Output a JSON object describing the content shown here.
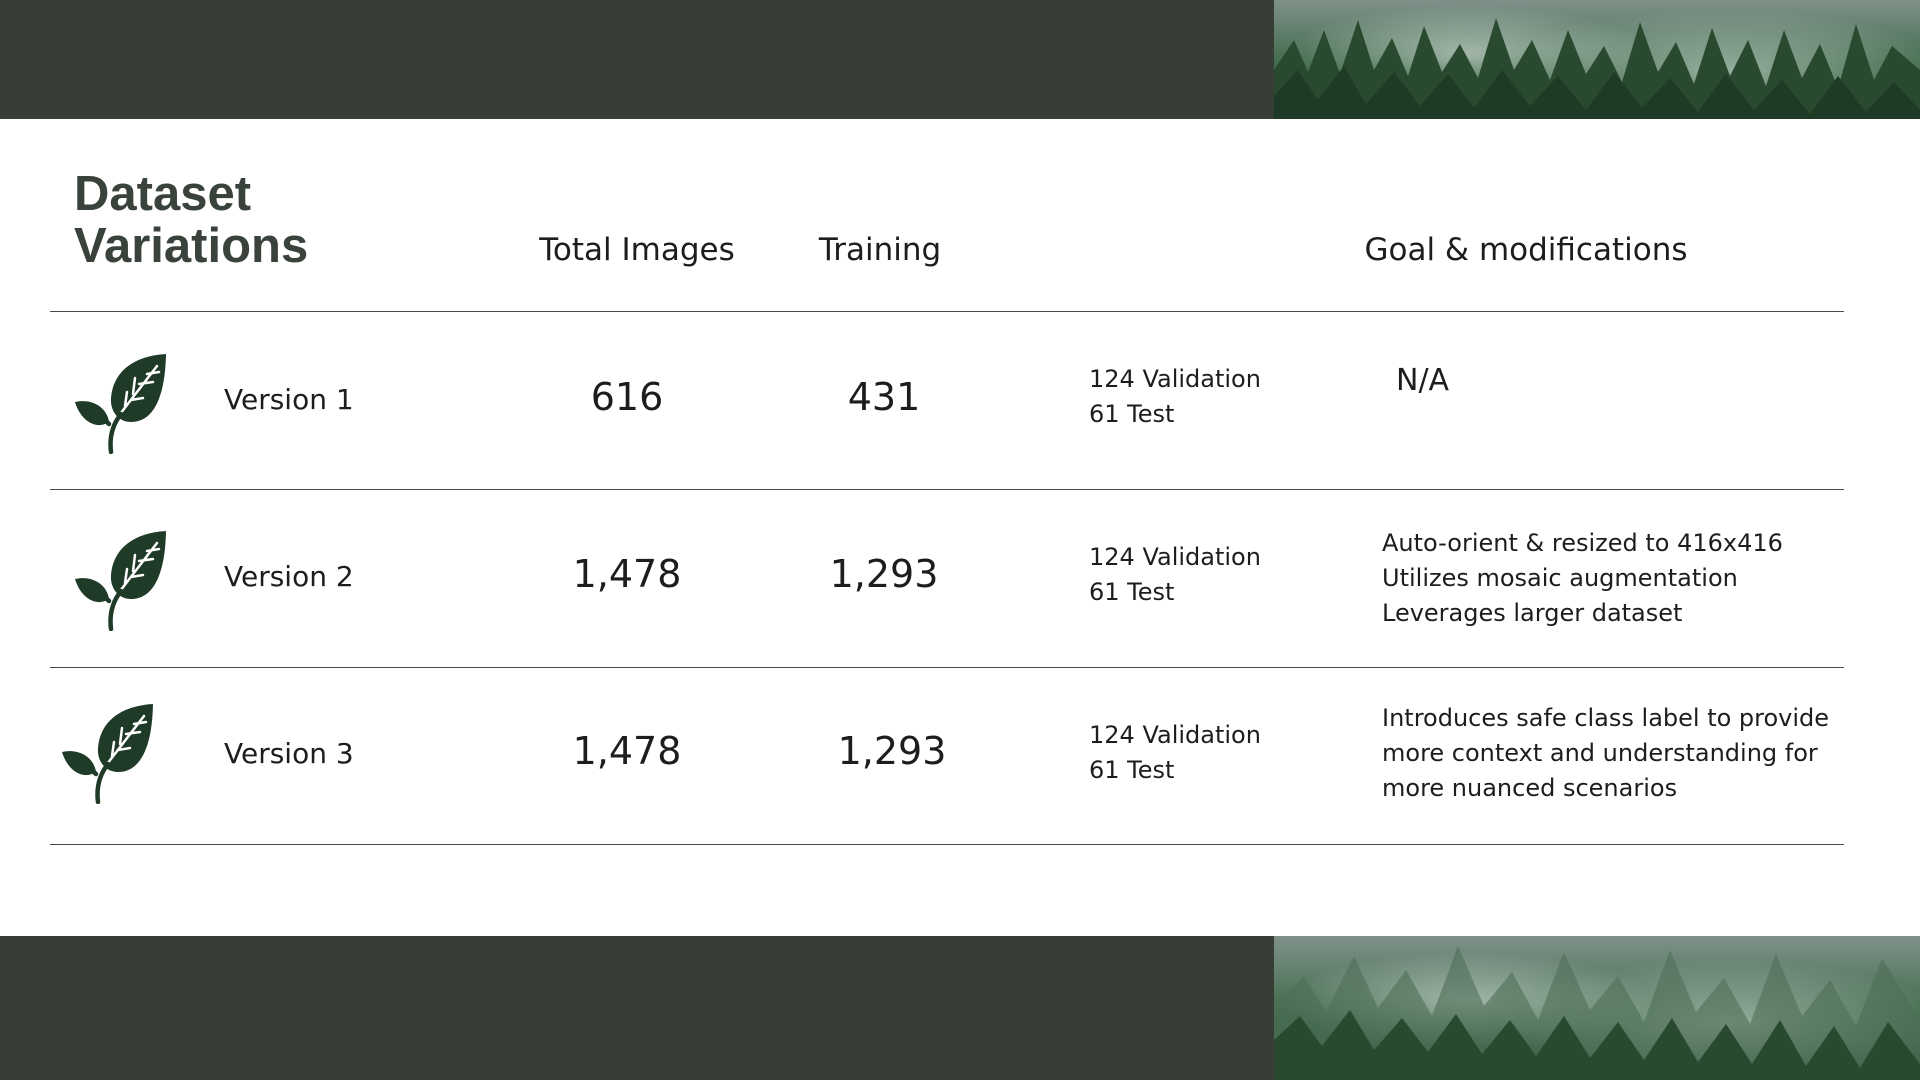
{
  "title_lines": [
    "Dataset",
    "Variations"
  ],
  "headers": {
    "total_images": "Total Images",
    "training": "Training",
    "goal": "Goal & modifications"
  },
  "rows": [
    {
      "version": "Version 1",
      "total_images": "616",
      "training": "431",
      "validation": "124 Validation",
      "test": "61 Test",
      "goal_lines": [
        "N/A"
      ]
    },
    {
      "version": "Version 2",
      "total_images": "1,478",
      "training": "1,293",
      "validation": "124 Validation",
      "test": "61 Test",
      "goal_lines": [
        "Auto-orient & resized to 416x416",
        "Utilizes mosaic augmentation",
        "Leverages larger dataset"
      ]
    },
    {
      "version": "Version 3",
      "total_images": "1,478",
      "training": "1,293",
      "validation": "124 Validation",
      "test": "61 Test",
      "goal_lines": [
        "Introduces safe class label to provide",
        "more context and understanding for",
        "more nuanced scenarios"
      ]
    }
  ],
  "icons": {
    "row_icon": "leaf-sprout-icon",
    "photo": "misty-forest-photo"
  },
  "colors": {
    "band": "#363e36",
    "title": "#3a433b",
    "leaf": "#1f3a26",
    "rule": "#4a4a4a"
  }
}
